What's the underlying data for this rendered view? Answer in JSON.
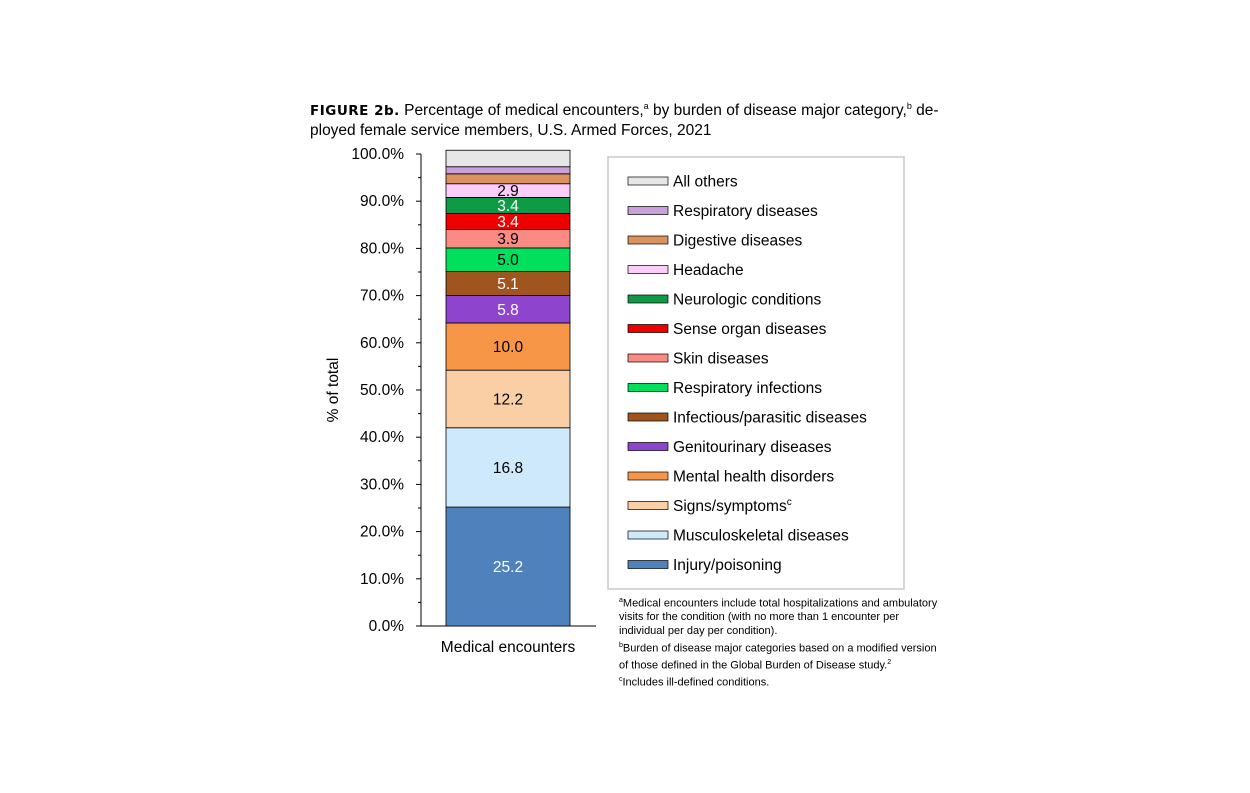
{
  "figure": {
    "label": "FIGURE 2b.",
    "title_a": " Percentage of medical encounters,",
    "sup_a": "a",
    "title_b": " by burden of disease major category,",
    "sup_b": "b",
    "title_c": " de-",
    "title_d": "ployed female service members, U.S. Armed Forces, 2021"
  },
  "chart_data": {
    "type": "bar",
    "stacked": true,
    "categories": [
      "Medical encounters"
    ],
    "ylabel": "% of total",
    "ylim": [
      0,
      100
    ],
    "yticks": [
      "0.0%",
      "10.0%",
      "20.0%",
      "30.0%",
      "40.0%",
      "50.0%",
      "60.0%",
      "70.0%",
      "80.0%",
      "90.0%",
      "100.0%"
    ],
    "series": [
      {
        "name": "Injury/poisoning",
        "value": 25.2,
        "label": "25.2",
        "color": "#4f81bd",
        "label_color": "#ffffff"
      },
      {
        "name": "Musculoskeletal diseases",
        "value": 16.8,
        "label": "16.8",
        "color": "#cde9fb",
        "label_color": "#000000"
      },
      {
        "name": "Signs/symptoms",
        "sup": "c",
        "value": 12.2,
        "label": "12.2",
        "color": "#fbcfa6",
        "label_color": "#000000"
      },
      {
        "name": "Mental health disorders",
        "value": 10.0,
        "label": "10.0",
        "color": "#f79646",
        "label_color": "#000000"
      },
      {
        "name": "Genitourinary diseases",
        "value": 5.8,
        "label": "5.8",
        "color": "#8e44cc",
        "label_color": "#ffffff"
      },
      {
        "name": "Infectious/parasitic diseases",
        "value": 5.1,
        "label": "5.1",
        "color": "#a0551f",
        "label_color": "#ffffff"
      },
      {
        "name": "Respiratory infections",
        "value": 5.0,
        "label": "5.0",
        "color": "#00e05c",
        "label_color": "#000000"
      },
      {
        "name": "Skin diseases",
        "value": 3.9,
        "label": "3.9",
        "color": "#fa8b84",
        "label_color": "#000000"
      },
      {
        "name": "Sense organ diseases",
        "value": 3.4,
        "label": "3.4",
        "color": "#ee0000",
        "label_color": "#ffffff"
      },
      {
        "name": "Neurologic conditions",
        "value": 3.4,
        "label": "3.4",
        "color": "#0f9b45",
        "label_color": "#ffffff"
      },
      {
        "name": "Headache",
        "value": 2.9,
        "label": "2.9",
        "color": "#fccdf8",
        "label_color": "#000000"
      },
      {
        "name": "Digestive diseases",
        "value": 2.1,
        "label": "",
        "color": "#da935e",
        "label_color": "#000000"
      },
      {
        "name": "Respiratory diseases",
        "value": 1.5,
        "label": "",
        "color": "#c9a0dc",
        "label_color": "#000000"
      },
      {
        "name": "All others",
        "value": 3.5,
        "label": "",
        "color": "#e6e6e6",
        "label_color": "#000000"
      }
    ],
    "legend": "right"
  },
  "footnotes": {
    "a_sup": "a",
    "a_text": "Medical encounters include total hospitalizations and ambulatory visits for the condition (with no more than 1 encounter per individual per day per condition).",
    "b_sup": "b",
    "b_text": "Burden of disease major categories based on a modified version of those defined in the Global Burden of Disease study.",
    "b_ref": "2",
    "c_sup": "c",
    "c_text": "Includes ill-defined conditions."
  }
}
